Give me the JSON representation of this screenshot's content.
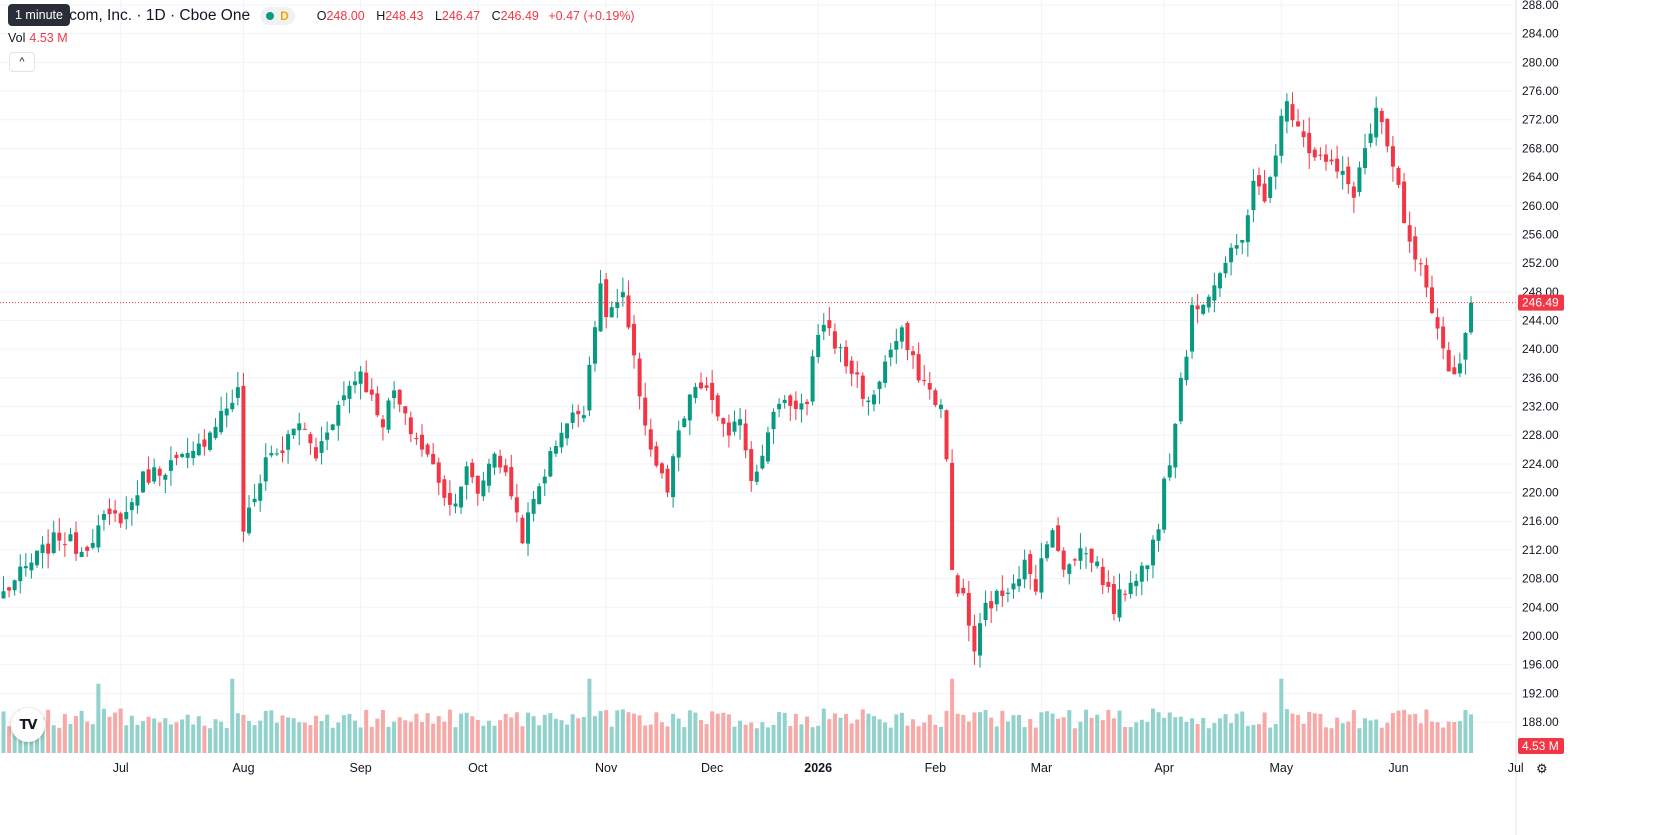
{
  "header": {
    "symbol_title": "Amazon.com, Inc. · 1D · Cboe One",
    "tooltip_interval": "1 minute",
    "delay_badge": "D",
    "ohlc": {
      "o_label": "O",
      "o": "248.00",
      "h_label": "H",
      "h": "248.43",
      "l_label": "L",
      "l": "246.47",
      "c_label": "C",
      "c": "246.49",
      "change": "+0.47 (+0.19%)"
    },
    "volume_label": "Vol",
    "volume_value": "4.53 M",
    "collapse_glyph": "^"
  },
  "branding": {
    "logo_text": "TV",
    "settings_icon": "gear-icon"
  },
  "colors": {
    "up": "#089981",
    "down": "#f23645",
    "up_volume": "#92d2cc",
    "down_volume": "#f7a9a7",
    "grid": "#f0f3fa"
  },
  "chart_data": {
    "type": "candlestick",
    "symbol": "Amazon.com, Inc.",
    "interval": "1D",
    "exchange": "Cboe One",
    "last_price": 246.49,
    "last_price_label": "246.49",
    "last_volume_label": "4.53 M",
    "price_axis": {
      "min": 188,
      "max": 288,
      "ticks": [
        "188.00",
        "192.00",
        "196.00",
        "200.00",
        "204.00",
        "208.00",
        "212.00",
        "216.00",
        "220.00",
        "224.00",
        "228.00",
        "232.00",
        "236.00",
        "240.00",
        "244.00",
        "248.00",
        "252.00",
        "256.00",
        "260.00",
        "264.00",
        "268.00",
        "272.00",
        "276.00",
        "280.00",
        "284.00",
        "288.00"
      ]
    },
    "time_axis": {
      "labels": [
        "Jul",
        "Aug",
        "Sep",
        "Oct",
        "Nov",
        "Dec",
        "2026",
        "Feb",
        "Mar",
        "Apr",
        "May",
        "Jun",
        "Jul"
      ],
      "label_bold": [
        false,
        false,
        false,
        false,
        false,
        false,
        true,
        false,
        false,
        false,
        false,
        false,
        false
      ],
      "label_index": [
        21,
        43,
        64,
        85,
        108,
        127,
        146,
        167,
        186,
        208,
        229,
        250,
        271
      ]
    },
    "close_anchors": [
      [
        0,
        206
      ],
      [
        6,
        211
      ],
      [
        10,
        214
      ],
      [
        14,
        212
      ],
      [
        18,
        216
      ],
      [
        22,
        217
      ],
      [
        25,
        222
      ],
      [
        30,
        224
      ],
      [
        34,
        225
      ],
      [
        38,
        230
      ],
      [
        42,
        234
      ],
      [
        43,
        215
      ],
      [
        45,
        219
      ],
      [
        47,
        225
      ],
      [
        50,
        226
      ],
      [
        53,
        230
      ],
      [
        56,
        225
      ],
      [
        58,
        229
      ],
      [
        62,
        235
      ],
      [
        64,
        237
      ],
      [
        66,
        233
      ],
      [
        68,
        230
      ],
      [
        70,
        234
      ],
      [
        72,
        230
      ],
      [
        76,
        225
      ],
      [
        78,
        222
      ],
      [
        80,
        218
      ],
      [
        83,
        223
      ],
      [
        85,
        220
      ],
      [
        88,
        226
      ],
      [
        91,
        220
      ],
      [
        93,
        214
      ],
      [
        96,
        221
      ],
      [
        100,
        229
      ],
      [
        104,
        232
      ],
      [
        106,
        244
      ],
      [
        107,
        248
      ],
      [
        108,
        245
      ],
      [
        111,
        247
      ],
      [
        113,
        238
      ],
      [
        116,
        226
      ],
      [
        119,
        220
      ],
      [
        121,
        228
      ],
      [
        124,
        235
      ],
      [
        127,
        233
      ],
      [
        130,
        227
      ],
      [
        132,
        231
      ],
      [
        134,
        222
      ],
      [
        137,
        228
      ],
      [
        139,
        233
      ],
      [
        144,
        232
      ],
      [
        145,
        238
      ],
      [
        147,
        244
      ],
      [
        151,
        238
      ],
      [
        153,
        236
      ],
      [
        155,
        232
      ],
      [
        157,
        236
      ],
      [
        159,
        240
      ],
      [
        161,
        242
      ],
      [
        163,
        238
      ],
      [
        166,
        234
      ],
      [
        168,
        232
      ],
      [
        169,
        224
      ],
      [
        170,
        209
      ],
      [
        172,
        205
      ],
      [
        174,
        198
      ],
      [
        176,
        204
      ],
      [
        179,
        206
      ],
      [
        183,
        210
      ],
      [
        185,
        206
      ],
      [
        186,
        212
      ],
      [
        188,
        214
      ],
      [
        190,
        210
      ],
      [
        193,
        212
      ],
      [
        196,
        210
      ],
      [
        199,
        204
      ],
      [
        202,
        208
      ],
      [
        205,
        210
      ],
      [
        207,
        216
      ],
      [
        208,
        223
      ],
      [
        209,
        225
      ],
      [
        211,
        236
      ],
      [
        212,
        240
      ],
      [
        213,
        245
      ],
      [
        216,
        248
      ],
      [
        219,
        252
      ],
      [
        222,
        255
      ],
      [
        224,
        264
      ],
      [
        226,
        260
      ],
      [
        229,
        272
      ],
      [
        230,
        274
      ],
      [
        232,
        272
      ],
      [
        234,
        268
      ],
      [
        237,
        266
      ],
      [
        240,
        264
      ],
      [
        242,
        262
      ],
      [
        244,
        268
      ],
      [
        245,
        270
      ],
      [
        246,
        273
      ],
      [
        248,
        268
      ],
      [
        250,
        262
      ],
      [
        252,
        254
      ],
      [
        254,
        251
      ],
      [
        256,
        244
      ],
      [
        258,
        240
      ],
      [
        260,
        236
      ],
      [
        262,
        242
      ],
      [
        263,
        247
      ]
    ]
  }
}
